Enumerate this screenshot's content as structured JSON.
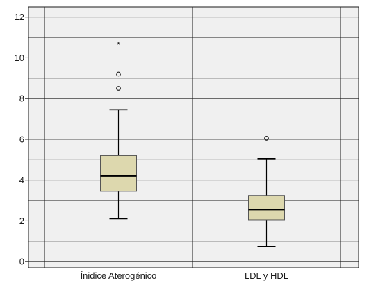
{
  "colors": {
    "plot_background": "#f0f0f0",
    "box_fill": "#ddd8ae",
    "line": "#000000",
    "grid": "#1a1a1a"
  },
  "chart_data": {
    "type": "boxplot",
    "title": "",
    "xlabel": "",
    "ylabel": "",
    "ylim": [
      -0.3,
      12.5
    ],
    "y_ticks": [
      0,
      2,
      4,
      6,
      8,
      10,
      12
    ],
    "y_tick_labels": [
      "0",
      "2",
      "4",
      "6",
      "8",
      "10",
      "12"
    ],
    "y_gridlines": [
      1,
      3,
      5,
      7,
      9,
      11
    ],
    "categories": [
      "Ínidice Aterogénico",
      "LDL y HDL"
    ],
    "boxes": [
      {
        "category": "Ínidice Aterogénico",
        "whisker_low": 2.1,
        "q1": 3.45,
        "median": 4.2,
        "q3": 5.2,
        "whisker_high": 7.45,
        "outliers": [
          9.2,
          8.5
        ],
        "extremes": [
          10.7
        ]
      },
      {
        "category": "LDL y HDL",
        "whisker_low": 0.75,
        "q1": 2.05,
        "median": 2.55,
        "q3": 3.25,
        "whisker_high": 5.05,
        "outliers": [
          6.05
        ],
        "extremes": []
      }
    ],
    "outlier_marker": "o",
    "extreme_marker": "*",
    "grid": true
  }
}
